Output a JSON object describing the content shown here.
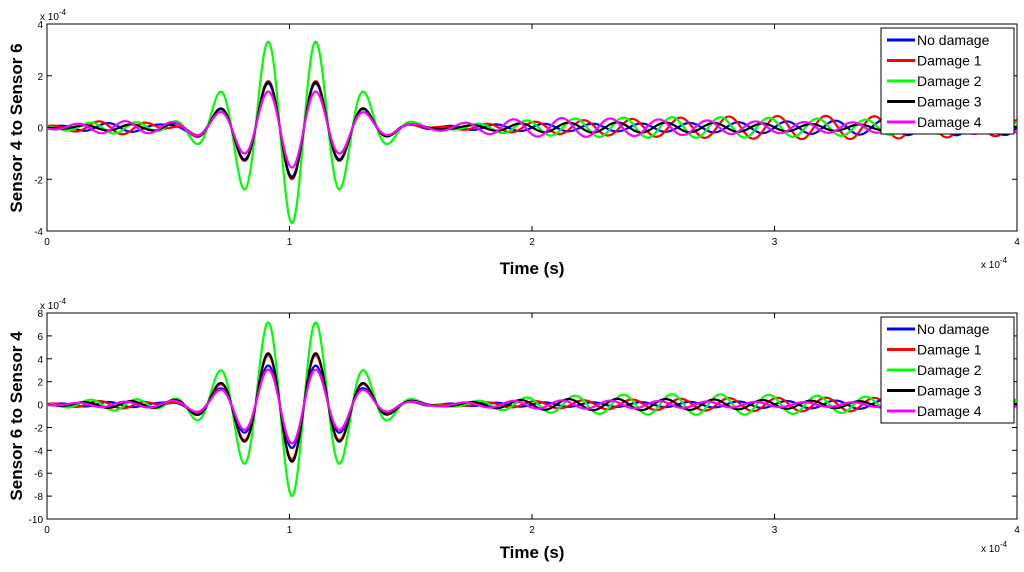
{
  "chart_data": [
    {
      "type": "line",
      "ylabel": "Sensor 4 to Sensor 6",
      "xlabel": "Time (s)",
      "x_multiplier": "x 10",
      "x_multiplier_exp": "-4",
      "y_multiplier": "x 10",
      "y_multiplier_exp": "-4",
      "xlim": [
        0,
        4
      ],
      "ylim": [
        -4,
        4
      ],
      "xticks": [
        "0",
        "1",
        "2",
        "3",
        "4"
      ],
      "yticks": [
        "-4",
        "-2",
        "0",
        "2",
        "4"
      ],
      "legend_position": "top-right",
      "series": [
        {
          "name": "No damage",
          "color": "#0000ff",
          "peak_amplitude": 1.9,
          "tail_amplitude": 0.3,
          "tail_phase": 0.0
        },
        {
          "name": "Damage 1",
          "color": "#ff0000",
          "peak_amplitude": 2.0,
          "tail_amplitude": 0.45,
          "tail_phase": 1.2
        },
        {
          "name": "Damage 2",
          "color": "#00ff00",
          "peak_amplitude": 3.7,
          "tail_amplitude": 0.4,
          "tail_phase": 2.3
        },
        {
          "name": "Damage 3",
          "color": "#000000",
          "peak_amplitude": 1.95,
          "tail_amplitude": 0.2,
          "tail_phase": 3.1
        },
        {
          "name": "Damage 4",
          "color": "#ff00ff",
          "peak_amplitude": 1.55,
          "tail_amplitude": 0.4,
          "tail_phase": 4.0
        }
      ]
    },
    {
      "type": "line",
      "ylabel": "Sensor 6 to Sensor 4",
      "xlabel": "Time (s)",
      "x_multiplier": "x 10",
      "x_multiplier_exp": "-4",
      "y_multiplier": "x 10",
      "y_multiplier_exp": "-4",
      "xlim": [
        0,
        4
      ],
      "ylim": [
        -10,
        8
      ],
      "xticks": [
        "0",
        "1",
        "2",
        "3",
        "4"
      ],
      "yticks": [
        "-10",
        "-8",
        "-6",
        "-4",
        "-2",
        "0",
        "2",
        "4",
        "6",
        "8"
      ],
      "legend_position": "top-right",
      "series": [
        {
          "name": "No damage",
          "color": "#0000ff",
          "peak_amplitude": 3.8,
          "tail_amplitude": 0.4,
          "tail_phase": 0.0
        },
        {
          "name": "Damage 1",
          "color": "#ff0000",
          "peak_amplitude": 4.8,
          "tail_amplitude": 0.6,
          "tail_phase": 1.2
        },
        {
          "name": "Damage 2",
          "color": "#00ff00",
          "peak_amplitude": 8.0,
          "tail_amplitude": 0.9,
          "tail_phase": 2.3
        },
        {
          "name": "Damage 3",
          "color": "#000000",
          "peak_amplitude": 5.0,
          "tail_amplitude": 0.5,
          "tail_phase": 3.1
        },
        {
          "name": "Damage 4",
          "color": "#ff00ff",
          "peak_amplitude": 3.4,
          "tail_amplitude": 0.4,
          "tail_phase": 4.0
        }
      ]
    }
  ]
}
